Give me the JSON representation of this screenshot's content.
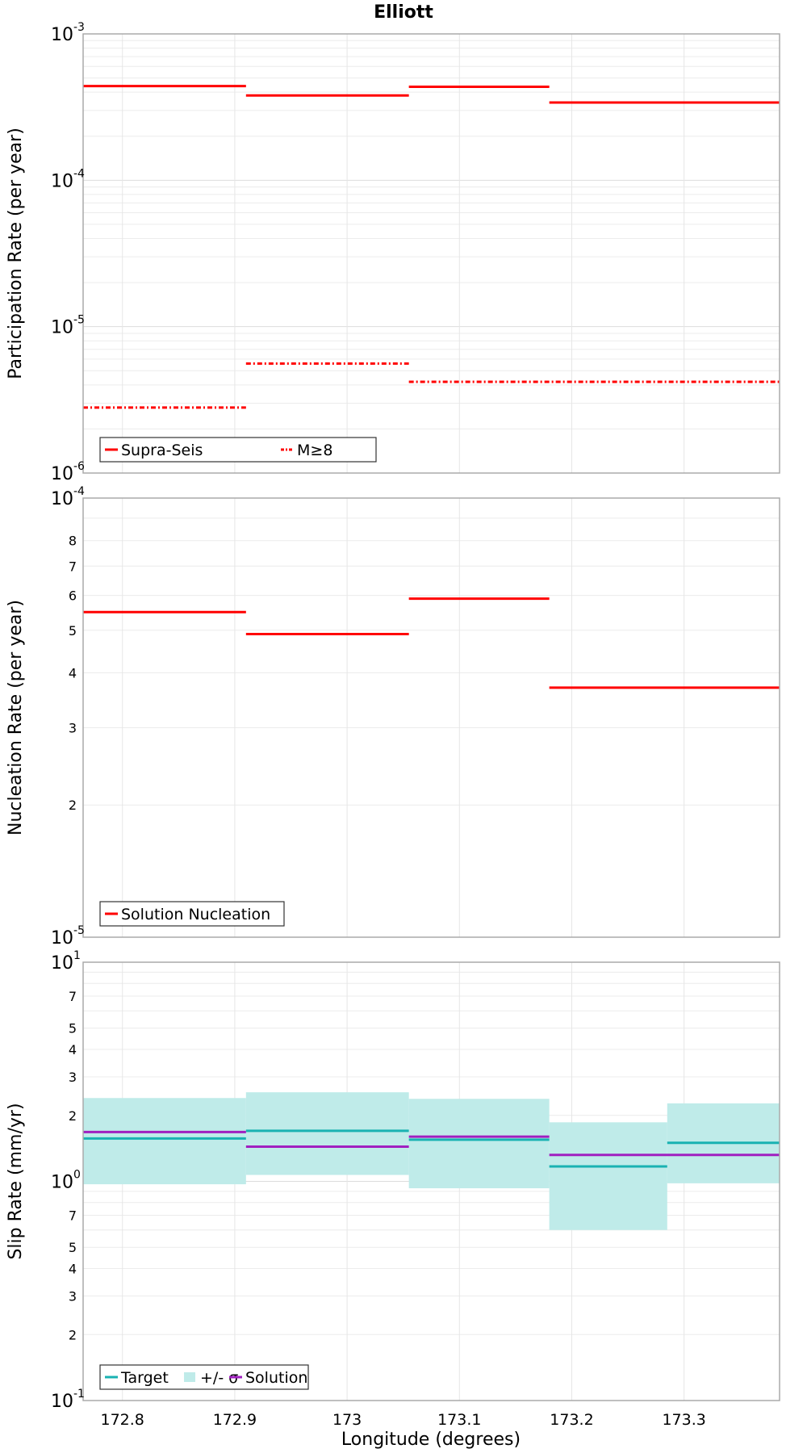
{
  "title": "Elliott",
  "xlabel": "Longitude (degrees)",
  "x_ticks": [
    "172.8",
    "172.9",
    "173",
    "173.1",
    "173.2",
    "173.3"
  ],
  "chart_data": [
    {
      "type": "line",
      "step": true,
      "title": "Elliott",
      "ylabel": "Participation Rate (per year)",
      "yscale": "log",
      "ylim": [
        1e-06,
        0.001
      ],
      "xlim": [
        172.765,
        173.385
      ],
      "y_ticks": [
        {
          "base": "10",
          "exp": "-6"
        },
        {
          "base": "10",
          "exp": "-5"
        },
        {
          "base": "10",
          "exp": "-4"
        },
        {
          "base": "10",
          "exp": "-3"
        }
      ],
      "grid": true,
      "legend_position": "bottom-left",
      "series": [
        {
          "name": "Supra-Seis",
          "color": "#ff0000",
          "style": "solid",
          "segments": [
            {
              "x0": 172.765,
              "x1": 172.91,
              "y": 0.00044
            },
            {
              "x0": 172.91,
              "x1": 173.055,
              "y": 0.00038
            },
            {
              "x0": 173.055,
              "x1": 173.18,
              "y": 0.000435
            },
            {
              "x0": 173.18,
              "x1": 173.385,
              "y": 0.00034
            }
          ]
        },
        {
          "name": "M≥8",
          "color": "#ff0000",
          "style": "dashdot",
          "segments": [
            {
              "x0": 172.765,
              "x1": 172.91,
              "y": 2.8e-06
            },
            {
              "x0": 172.91,
              "x1": 173.055,
              "y": 5.6e-06
            },
            {
              "x0": 173.055,
              "x1": 173.385,
              "y": 4.2e-06
            }
          ]
        }
      ]
    },
    {
      "type": "line",
      "step": true,
      "ylabel": "Nucleation Rate (per year)",
      "yscale": "log",
      "ylim": [
        1e-05,
        0.0001
      ],
      "xlim": [
        172.765,
        173.385
      ],
      "y_ticks": [
        {
          "base": "10",
          "exp": "-5"
        },
        {
          "base": "10",
          "exp": "-4"
        }
      ],
      "y_minor_ticks": [
        "2",
        "3",
        "4",
        "5",
        "6",
        "7",
        "8"
      ],
      "grid": true,
      "legend_position": "bottom-left",
      "series": [
        {
          "name": "Solution Nucleation",
          "color": "#ff0000",
          "style": "solid",
          "segments": [
            {
              "x0": 172.765,
              "x1": 172.91,
              "y": 5.5e-05
            },
            {
              "x0": 172.91,
              "x1": 173.055,
              "y": 4.9e-05
            },
            {
              "x0": 173.055,
              "x1": 173.18,
              "y": 5.9e-05
            },
            {
              "x0": 173.18,
              "x1": 173.385,
              "y": 3.7e-05
            }
          ]
        }
      ]
    },
    {
      "type": "line",
      "step": true,
      "ylabel": "Slip Rate (mm/yr)",
      "yscale": "log",
      "ylim": [
        0.1,
        10
      ],
      "xlim": [
        172.765,
        173.385
      ],
      "y_ticks": [
        {
          "base": "10",
          "exp": "-1"
        },
        {
          "base": "10",
          "exp": "0"
        },
        {
          "base": "10",
          "exp": "1"
        }
      ],
      "y_minor_ticks_low": [
        "2",
        "3",
        "4",
        "5",
        "7"
      ],
      "y_minor_ticks_high": [
        "2",
        "3",
        "4",
        "5",
        "7"
      ],
      "grid": true,
      "legend_position": "bottom-left",
      "bands": {
        "name": "+/- σ",
        "color": "#bfebe9",
        "segments": [
          {
            "x0": 172.765,
            "x1": 172.91,
            "lo": 0.97,
            "hi": 2.4
          },
          {
            "x0": 172.91,
            "x1": 173.055,
            "lo": 1.07,
            "hi": 2.55
          },
          {
            "x0": 173.055,
            "x1": 173.18,
            "lo": 0.93,
            "hi": 2.38
          },
          {
            "x0": 173.18,
            "x1": 173.285,
            "lo": 0.6,
            "hi": 1.86
          },
          {
            "x0": 173.285,
            "x1": 173.385,
            "lo": 0.98,
            "hi": 2.27
          }
        ]
      },
      "series": [
        {
          "name": "Target",
          "color": "#19b2b2",
          "style": "solid",
          "segments": [
            {
              "x0": 172.765,
              "x1": 172.91,
              "y": 1.57
            },
            {
              "x0": 172.91,
              "x1": 173.055,
              "y": 1.7
            },
            {
              "x0": 173.055,
              "x1": 173.18,
              "y": 1.55
            },
            {
              "x0": 173.18,
              "x1": 173.285,
              "y": 1.17
            },
            {
              "x0": 173.285,
              "x1": 173.385,
              "y": 1.5
            }
          ]
        },
        {
          "name": "Solution",
          "color": "#a020c0",
          "style": "solid",
          "segments": [
            {
              "x0": 172.765,
              "x1": 172.91,
              "y": 1.68
            },
            {
              "x0": 172.91,
              "x1": 173.055,
              "y": 1.44
            },
            {
              "x0": 173.055,
              "x1": 173.18,
              "y": 1.6
            },
            {
              "x0": 173.18,
              "x1": 173.385,
              "y": 1.32
            }
          ]
        }
      ]
    }
  ]
}
